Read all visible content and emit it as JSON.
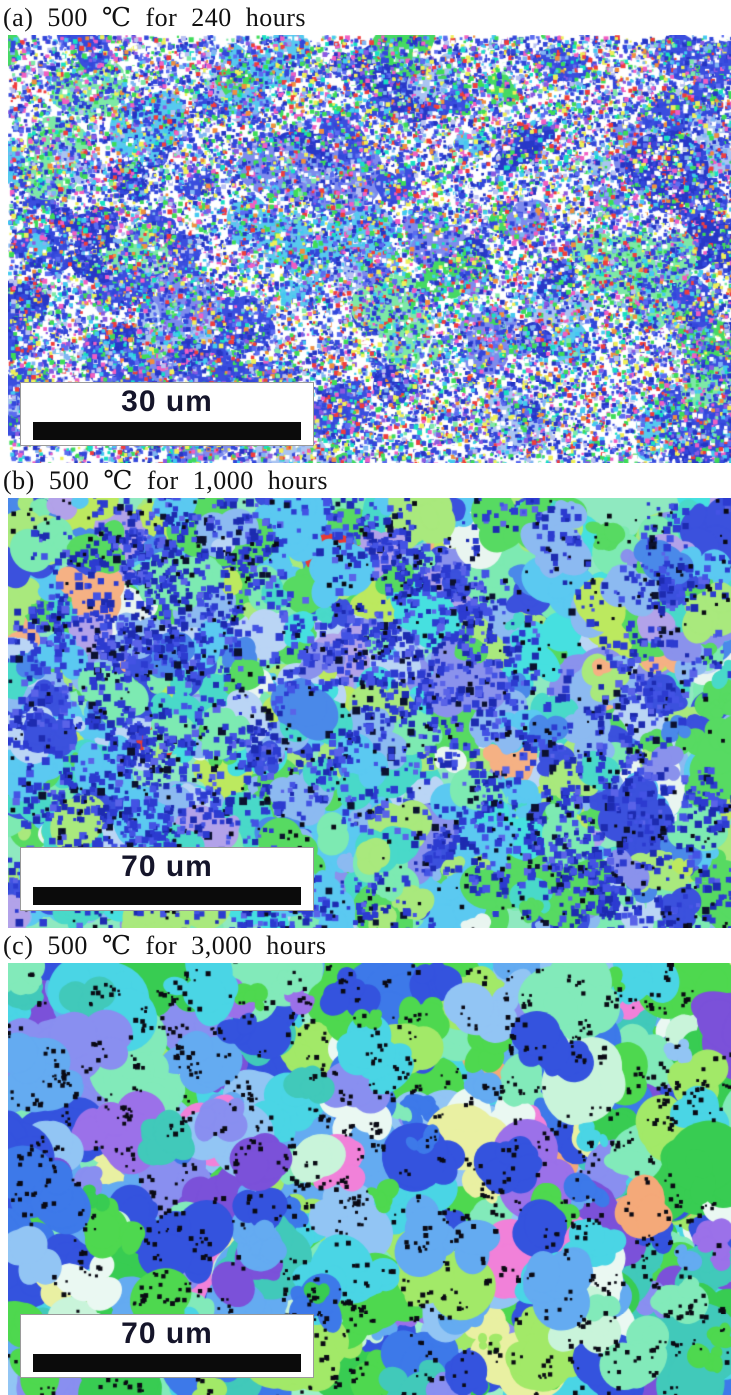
{
  "figure": {
    "panels": [
      {
        "id": "a",
        "label": "(a) 500 ℃ for 240 hours",
        "scale_bar": {
          "text": "30 um",
          "bar_color": "#0b0b0b",
          "box_color": "#ffffff"
        },
        "texture": {
          "seed": 11,
          "background": "#ffffff",
          "layers": [
            {
              "type": "grains",
              "count": 120,
              "minSize": 14,
              "maxSize": 55,
              "lobes": 6,
              "palette": [
                [
                  "#7de9a6",
                  3
                ],
                [
                  "#46d964",
                  2
                ],
                [
                  "#3a4ede",
                  8
                ],
                [
                  "#7d8bed",
                  3
                ],
                [
                  "#57c9ef",
                  3
                ],
                [
                  "#a9c4f2",
                  2
                ],
                [
                  "#2838c8",
                  4
                ]
              ]
            },
            {
              "type": "speckle",
              "count": 26000,
              "minSize": 2,
              "maxSize": 5,
              "palette": [
                [
                  "#3347db",
                  22
                ],
                [
                  "#2535c4",
                  8
                ],
                [
                  "#5b6cf0",
                  8
                ],
                [
                  "#44c9f0",
                  7
                ],
                [
                  "#7fb5f2",
                  5
                ],
                [
                  "#3edc59",
                  9
                ],
                [
                  "#7fe8a8",
                  3
                ],
                [
                  "#eef059",
                  6
                ],
                [
                  "#f03d3d",
                  5
                ],
                [
                  "#f05fc2",
                  6
                ],
                [
                  "#ef8f3f",
                  3
                ],
                [
                  "#8a5ae0",
                  4
                ],
                [
                  "#ffffff",
                  10
                ],
                [
                  "#b9c1f1",
                  4
                ],
                [
                  "#17e0c3",
                  3
                ]
              ]
            }
          ]
        }
      },
      {
        "id": "b",
        "label": "(b) 500 ℃ for 1,000 hours",
        "scale_bar": {
          "text": "70 um",
          "bar_color": "#0b0b0b",
          "box_color": "#ffffff"
        },
        "texture": {
          "seed": 7,
          "background": "#8fe9c0",
          "layers": [
            {
              "type": "grains",
              "count": 900,
              "minSize": 10,
              "maxSize": 46,
              "lobes": 7,
              "palette": [
                [
                  "#57da62",
                  12
                ],
                [
                  "#a9e97d",
                  7
                ],
                [
                  "#bce95f",
                  4
                ],
                [
                  "#7deab2",
                  9
                ],
                [
                  "#49d9c9",
                  6
                ],
                [
                  "#5bc9f1",
                  9
                ],
                [
                  "#8cbaf1",
                  8
                ],
                [
                  "#3b51dd",
                  10
                ],
                [
                  "#8a92ec",
                  6
                ],
                [
                  "#bad5f5",
                  6
                ],
                [
                  "#e9f5f0",
                  4
                ],
                [
                  "#f5b184",
                  2
                ],
                [
                  "#e93b32",
                  1
                ],
                [
                  "#b2a2e9",
                  2
                ],
                [
                  "#4a89e9",
                  3
                ],
                [
                  "#46e0e0",
                  3
                ]
              ]
            },
            {
              "type": "clusters",
              "count": 310,
              "dots": 14,
              "spread": 22,
              "minSize": 3,
              "maxSize": 8,
              "palette": [
                [
                  "#2c3bd0",
                  10
                ],
                [
                  "#1d2bb0",
                  6
                ],
                [
                  "#4353e4",
                  6
                ],
                [
                  "#5a63e8",
                  3
                ],
                [
                  "#0c1230",
                  2
                ]
              ]
            },
            {
              "type": "speckle",
              "count": 430,
              "minSize": 2,
              "maxSize": 5,
              "palette": [
                [
                  "#0a0a16",
                  1
                ]
              ]
            }
          ]
        }
      },
      {
        "id": "c",
        "label": "(c) 500 ℃ for 3,000 hours",
        "scale_bar": {
          "text": "70 um",
          "bar_color": "#0b0b0b",
          "box_color": "#ffffff"
        },
        "texture": {
          "seed": 13,
          "background": "#9ef0c8",
          "layers": [
            {
              "type": "grains",
              "count": 720,
              "minSize": 14,
              "maxSize": 62,
              "lobes": 7,
              "palette": [
                [
                  "#4ed84f",
                  10
                ],
                [
                  "#38cc52",
                  6
                ],
                [
                  "#a2e968",
                  5
                ],
                [
                  "#82eaba",
                  7
                ],
                [
                  "#c9f4da",
                  3
                ],
                [
                  "#4ad5e5",
                  8
                ],
                [
                  "#41c9ba",
                  5
                ],
                [
                  "#64abf1",
                  9
                ],
                [
                  "#92c5f4",
                  5
                ],
                [
                  "#3453de",
                  7
                ],
                [
                  "#3d79e9",
                  5
                ],
                [
                  "#898ff0",
                  5
                ],
                [
                  "#7b51d9",
                  3
                ],
                [
                  "#9b71e9",
                  2
                ],
                [
                  "#e9f0a2",
                  2
                ],
                [
                  "#eaf8f2",
                  2
                ],
                [
                  "#f181d9",
                  1
                ],
                [
                  "#f4a979",
                  1
                ]
              ]
            },
            {
              "type": "clusters",
              "count": 480,
              "dots": 3,
              "spread": 7,
              "minSize": 2,
              "maxSize": 5,
              "palette": [
                [
                  "#0a0a14",
                  1
                ]
              ]
            }
          ]
        }
      }
    ]
  }
}
